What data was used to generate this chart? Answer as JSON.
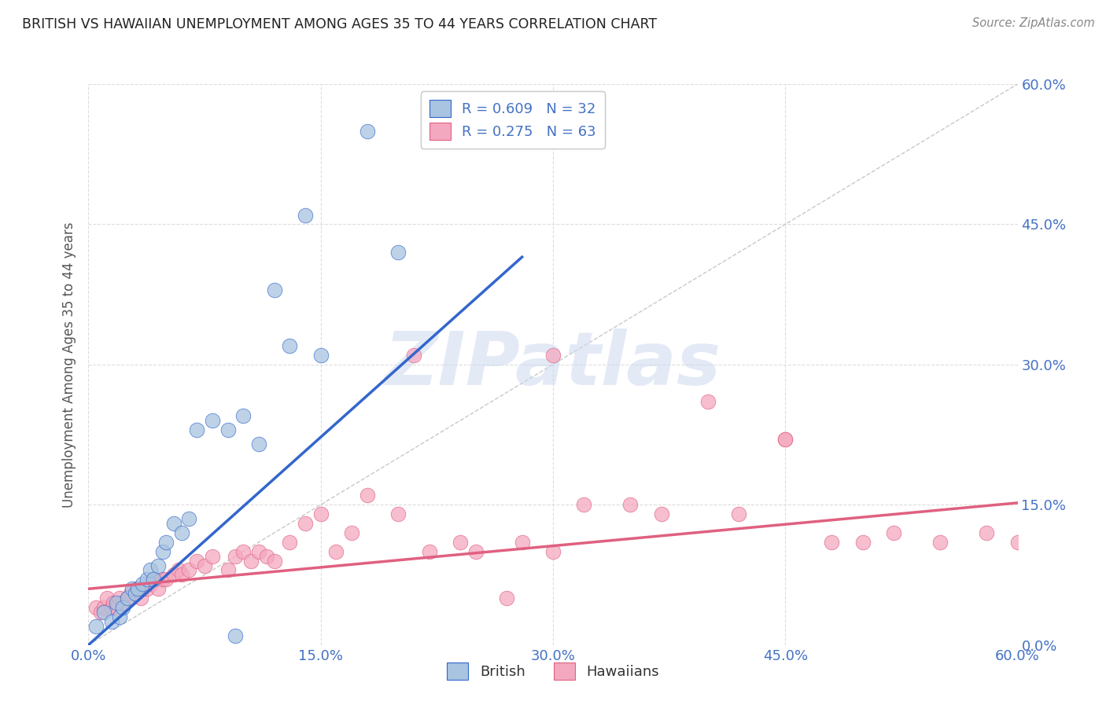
{
  "title": "BRITISH VS HAWAIIAN UNEMPLOYMENT AMONG AGES 35 TO 44 YEARS CORRELATION CHART",
  "source": "Source: ZipAtlas.com",
  "ylabel": "Unemployment Among Ages 35 to 44 years",
  "xmin": 0.0,
  "xmax": 0.6,
  "ymin": 0.0,
  "ymax": 0.6,
  "xticks": [
    0.0,
    0.15,
    0.3,
    0.45,
    0.6
  ],
  "yticks": [
    0.0,
    0.15,
    0.3,
    0.45,
    0.6
  ],
  "ytick_labels_right": [
    "0.0%",
    "15.0%",
    "30.0%",
    "45.0%",
    "60.0%"
  ],
  "xtick_labels": [
    "0.0%",
    "15.0%",
    "30.0%",
    "45.0%",
    "60.0%"
  ],
  "british_color": "#a8c4e0",
  "hawaiian_color": "#f4a8c0",
  "british_line_color": "#3366cc",
  "hawaiian_line_color": "#e06080",
  "ref_line_color": "#bbbbbb",
  "legend_british_label": "R = 0.609   N = 32",
  "legend_hawaiian_label": "R = 0.275   N = 63",
  "legend_bottom_british": "British",
  "legend_bottom_hawaiian": "Hawaiians",
  "background_color": "#ffffff",
  "grid_color": "#dddddd",
  "title_color": "#222222",
  "axis_label_color": "#555555",
  "tick_label_color_blue": "#4472c4",
  "watermark_color": "#ccd9f0",
  "dot_size": 180,
  "british_x": [
    0.005,
    0.01,
    0.015,
    0.018,
    0.02,
    0.022,
    0.025,
    0.028,
    0.03,
    0.032,
    0.035,
    0.038,
    0.04,
    0.042,
    0.045,
    0.048,
    0.05,
    0.055,
    0.06,
    0.065,
    0.07,
    0.08,
    0.09,
    0.095,
    0.1,
    0.11,
    0.12,
    0.13,
    0.14,
    0.15,
    0.18,
    0.2
  ],
  "british_y": [
    0.02,
    0.035,
    0.025,
    0.045,
    0.03,
    0.04,
    0.05,
    0.06,
    0.055,
    0.06,
    0.065,
    0.07,
    0.08,
    0.07,
    0.085,
    0.1,
    0.11,
    0.13,
    0.12,
    0.135,
    0.23,
    0.24,
    0.23,
    0.01,
    0.245,
    0.215,
    0.38,
    0.32,
    0.46,
    0.31,
    0.55,
    0.42
  ],
  "hawaiian_x": [
    0.005,
    0.008,
    0.01,
    0.012,
    0.015,
    0.016,
    0.018,
    0.02,
    0.022,
    0.025,
    0.027,
    0.03,
    0.032,
    0.034,
    0.035,
    0.038,
    0.04,
    0.042,
    0.045,
    0.048,
    0.05,
    0.055,
    0.058,
    0.06,
    0.065,
    0.07,
    0.075,
    0.08,
    0.09,
    0.095,
    0.1,
    0.105,
    0.11,
    0.115,
    0.12,
    0.13,
    0.14,
    0.15,
    0.16,
    0.17,
    0.18,
    0.2,
    0.21,
    0.22,
    0.24,
    0.25,
    0.27,
    0.28,
    0.3,
    0.32,
    0.35,
    0.37,
    0.4,
    0.42,
    0.45,
    0.48,
    0.5,
    0.52,
    0.55,
    0.58,
    0.6,
    0.3,
    0.45
  ],
  "hawaiian_y": [
    0.04,
    0.035,
    0.04,
    0.05,
    0.04,
    0.045,
    0.04,
    0.05,
    0.045,
    0.05,
    0.055,
    0.055,
    0.06,
    0.05,
    0.06,
    0.06,
    0.065,
    0.07,
    0.06,
    0.07,
    0.07,
    0.075,
    0.08,
    0.075,
    0.08,
    0.09,
    0.085,
    0.095,
    0.08,
    0.095,
    0.1,
    0.09,
    0.1,
    0.095,
    0.09,
    0.11,
    0.13,
    0.14,
    0.1,
    0.12,
    0.16,
    0.14,
    0.31,
    0.1,
    0.11,
    0.1,
    0.05,
    0.11,
    0.1,
    0.15,
    0.15,
    0.14,
    0.26,
    0.14,
    0.22,
    0.11,
    0.11,
    0.12,
    0.11,
    0.12,
    0.11,
    0.31,
    0.22
  ],
  "brit_line_x0": 0.0,
  "brit_line_y0": 0.0,
  "brit_line_x1": 0.28,
  "brit_line_y1": 0.415,
  "haw_line_x0": 0.0,
  "haw_line_y0": 0.06,
  "haw_line_x1": 0.6,
  "haw_line_y1": 0.152
}
